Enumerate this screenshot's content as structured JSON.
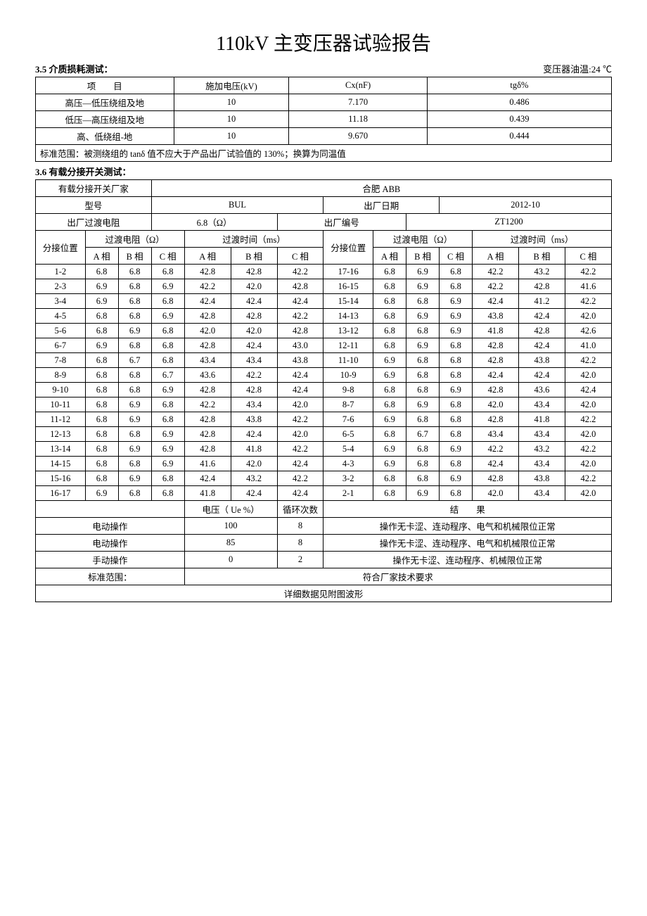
{
  "title": "110kV 主变压器试验报告",
  "s35": {
    "title": "3.5 介质损耗测试：",
    "right": "变压器油温:24 ℃",
    "h_item": "项　　目",
    "h_volt": "施加电压(kV)",
    "h_cx": "Cx(nF)",
    "h_tg": "tgδ%",
    "rows": [
      {
        "item": "高压—低压绕组及地",
        "v": "10",
        "c": "7.170",
        "t": "0.486"
      },
      {
        "item": "低压—高压绕组及地",
        "v": "10",
        "c": "11.18",
        "t": "0.439"
      },
      {
        "item": "高、低绕组-地",
        "v": "10",
        "c": "9.670",
        "t": "0.444"
      }
    ],
    "std": "标准范围：被测绕组的 tanδ 值不应大于产品出厂试验值的 130%；换算为同温值"
  },
  "s36": {
    "title": "3.6 有载分接开关测试：",
    "mfr_lbl": "有载分接开关厂家",
    "mfr_val": "合肥 ABB",
    "model_lbl": "型号",
    "model_val": "BUL",
    "date_lbl": "出厂日期",
    "date_val": "2012-10",
    "res_lbl": "出厂过渡电阻",
    "res_val": "6.8（Ω）",
    "sn_lbl": "出厂编号",
    "sn_val": "ZT1200",
    "tap_lbl": "分接位置",
    "tres_lbl": "过渡电阻（Ω）",
    "ttime_lbl": "过渡时间（ms）",
    "pa": "A 相",
    "pb": "B 相",
    "pc": "C 相",
    "pa2": "A 相",
    "pb2": "B 相",
    "pc2": "C 相",
    "left_rows": [
      {
        "p": "1-2",
        "a": "6.8",
        "b": "6.8",
        "c": "6.8",
        "ta": "42.8",
        "tb": "42.8",
        "tc": "42.2"
      },
      {
        "p": "2-3",
        "a": "6.9",
        "b": "6.8",
        "c": "6.9",
        "ta": "42.2",
        "tb": "42.0",
        "tc": "42.8"
      },
      {
        "p": "3-4",
        "a": "6.9",
        "b": "6.8",
        "c": "6.8",
        "ta": "42.4",
        "tb": "42.4",
        "tc": "42.4"
      },
      {
        "p": "4-5",
        "a": "6.8",
        "b": "6.8",
        "c": "6.9",
        "ta": "42.8",
        "tb": "42.8",
        "tc": "42.2"
      },
      {
        "p": "5-6",
        "a": "6.8",
        "b": "6.9",
        "c": "6.8",
        "ta": "42.0",
        "tb": "42.0",
        "tc": "42.8"
      },
      {
        "p": "6-7",
        "a": "6.9",
        "b": "6.8",
        "c": "6.8",
        "ta": "42.8",
        "tb": "42.4",
        "tc": "43.0"
      },
      {
        "p": "7-8",
        "a": "6.8",
        "b": "6.7",
        "c": "6.8",
        "ta": "43.4",
        "tb": "43.4",
        "tc": "43.8"
      },
      {
        "p": "8-9",
        "a": "6.8",
        "b": "6.8",
        "c": "6.7",
        "ta": "43.6",
        "tb": "42.2",
        "tc": "42.4"
      },
      {
        "p": "9-10",
        "a": "6.8",
        "b": "6.8",
        "c": "6.9",
        "ta": "42.8",
        "tb": "42.8",
        "tc": "42.4"
      },
      {
        "p": "10-11",
        "a": "6.8",
        "b": "6.9",
        "c": "6.8",
        "ta": "42.2",
        "tb": "43.4",
        "tc": "42.0"
      },
      {
        "p": "11-12",
        "a": "6.8",
        "b": "6.9",
        "c": "6.8",
        "ta": "42.8",
        "tb": "43.8",
        "tc": "42.2"
      },
      {
        "p": "12-13",
        "a": "6.8",
        "b": "6.8",
        "c": "6.9",
        "ta": "42.8",
        "tb": "42.4",
        "tc": "42.0"
      },
      {
        "p": "13-14",
        "a": "6.8",
        "b": "6.9",
        "c": "6.9",
        "ta": "42.8",
        "tb": "41.8",
        "tc": "42.2"
      },
      {
        "p": "14-15",
        "a": "6.8",
        "b": "6.8",
        "c": "6.9",
        "ta": "41.6",
        "tb": "42.0",
        "tc": "42.4"
      },
      {
        "p": "15-16",
        "a": "6.8",
        "b": "6.9",
        "c": "6.8",
        "ta": "42.4",
        "tb": "43.2",
        "tc": "42.2"
      },
      {
        "p": "16-17",
        "a": "6.9",
        "b": "6.8",
        "c": "6.8",
        "ta": "41.8",
        "tb": "42.4",
        "tc": "42.4"
      }
    ],
    "right_rows": [
      {
        "p": "17-16",
        "a": "6.8",
        "b": "6.9",
        "c": "6.8",
        "ta": "42.2",
        "tb": "43.2",
        "tc": "42.2"
      },
      {
        "p": "16-15",
        "a": "6.8",
        "b": "6.9",
        "c": "6.8",
        "ta": "42.2",
        "tb": "42.8",
        "tc": "41.6"
      },
      {
        "p": "15-14",
        "a": "6.8",
        "b": "6.8",
        "c": "6.9",
        "ta": "42.4",
        "tb": "41.2",
        "tc": "42.2"
      },
      {
        "p": "14-13",
        "a": "6.8",
        "b": "6.9",
        "c": "6.9",
        "ta": "43.8",
        "tb": "42.4",
        "tc": "42.0"
      },
      {
        "p": "13-12",
        "a": "6.8",
        "b": "6.8",
        "c": "6.9",
        "ta": "41.8",
        "tb": "42.8",
        "tc": "42.6"
      },
      {
        "p": "12-11",
        "a": "6.8",
        "b": "6.9",
        "c": "6.8",
        "ta": "42.8",
        "tb": "42.4",
        "tc": "41.0"
      },
      {
        "p": "11-10",
        "a": "6.9",
        "b": "6.8",
        "c": "6.8",
        "ta": "42.8",
        "tb": "43.8",
        "tc": "42.2"
      },
      {
        "p": "10-9",
        "a": "6.9",
        "b": "6.8",
        "c": "6.8",
        "ta": "42.4",
        "tb": "42.4",
        "tc": "42.0"
      },
      {
        "p": "9-8",
        "a": "6.8",
        "b": "6.8",
        "c": "6.9",
        "ta": "42.8",
        "tb": "43.6",
        "tc": "42.4"
      },
      {
        "p": "8-7",
        "a": "6.8",
        "b": "6.9",
        "c": "6.8",
        "ta": "42.0",
        "tb": "43.4",
        "tc": "42.0"
      },
      {
        "p": "7-6",
        "a": "6.9",
        "b": "6.8",
        "c": "6.8",
        "ta": "42.8",
        "tb": "41.8",
        "tc": "42.2"
      },
      {
        "p": "6-5",
        "a": "6.8",
        "b": "6.7",
        "c": "6.8",
        "ta": "43.4",
        "tb": "43.4",
        "tc": "42.0"
      },
      {
        "p": "5-4",
        "a": "6.9",
        "b": "6.8",
        "c": "6.9",
        "ta": "42.2",
        "tb": "43.2",
        "tc": "42.2"
      },
      {
        "p": "4-3",
        "a": "6.9",
        "b": "6.8",
        "c": "6.8",
        "ta": "42.4",
        "tb": "43.4",
        "tc": "42.0"
      },
      {
        "p": "3-2",
        "a": "6.8",
        "b": "6.8",
        "c": "6.9",
        "ta": "42.8",
        "tb": "43.8",
        "tc": "42.2"
      },
      {
        "p": "2-1",
        "a": "6.8",
        "b": "6.9",
        "c": "6.8",
        "ta": "42.0",
        "tb": "43.4",
        "tc": "42.0"
      }
    ],
    "bot": {
      "h_volt": "电压（ Ue %）",
      "h_cyc": "循环次数",
      "h_res": "结　　果",
      "rows": [
        {
          "op": "电动操作",
          "v": "100",
          "c": "8",
          "r": "操作无卡涩、连动程序、电气和机械限位正常"
        },
        {
          "op": "电动操作",
          "v": "85",
          "c": "8",
          "r": "操作无卡涩、连动程序、电气和机械限位正常"
        },
        {
          "op": "手动操作",
          "v": "0",
          "c": "2",
          "r": "操作无卡涩、连动程序、机械限位正常"
        }
      ],
      "std_lbl": "标准范围：",
      "std_val": "符合厂家技术要求",
      "note": "详细数据见附图波形"
    }
  }
}
